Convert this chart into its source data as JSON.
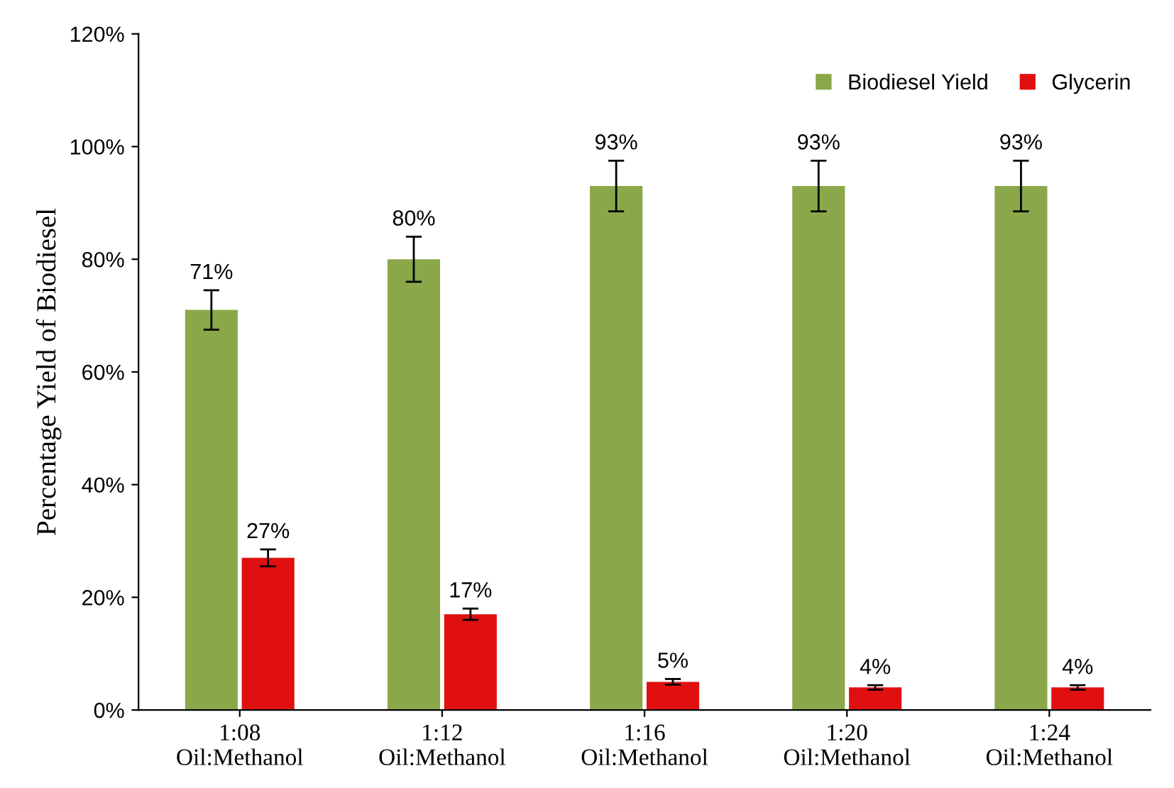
{
  "chart_data": {
    "type": "bar",
    "ylabel": "Percentage Yield of Biodiesel",
    "categories": [
      "1:08\nOil:Methanol",
      "1:12\nOil:Methanol",
      "1:16\nOil:Methanol",
      "1:20\nOil:Methanol",
      "1:24\nOil:Methanol"
    ],
    "series": [
      {
        "name": "Biodiesel Yield",
        "color": "#8aa84a",
        "values": [
          71,
          80,
          93,
          93,
          93
        ],
        "errors": [
          3.5,
          4,
          4.5,
          4.5,
          4.5
        ],
        "value_labels": [
          "71%",
          "80%",
          "93%",
          "93%",
          "93%"
        ]
      },
      {
        "name": "Glycerin",
        "color": "#e01010",
        "values": [
          27,
          17,
          5,
          4,
          4
        ],
        "errors": [
          1.5,
          1,
          0.5,
          0.4,
          0.4
        ],
        "value_labels": [
          "27%",
          "17%",
          "5%",
          "4%",
          "4%"
        ]
      }
    ],
    "ylim": [
      0,
      120
    ],
    "yticks": [
      {
        "value": 0,
        "label": "0%"
      },
      {
        "value": 20,
        "label": "20%"
      },
      {
        "value": 40,
        "label": "40%"
      },
      {
        "value": 60,
        "label": "60%"
      },
      {
        "value": 80,
        "label": "80%"
      },
      {
        "value": 100,
        "label": "100%"
      },
      {
        "value": 120,
        "label": "120%"
      }
    ],
    "grid": false,
    "legend": "top right"
  }
}
